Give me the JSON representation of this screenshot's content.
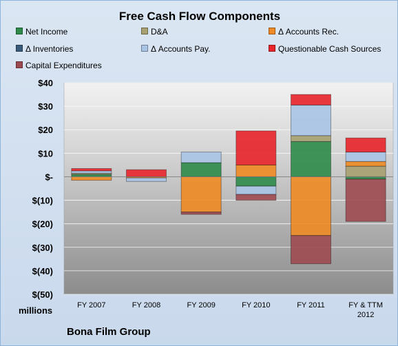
{
  "chart_data": {
    "type": "bar",
    "stacked": true,
    "title": "Free Cash Flow Components",
    "ylabel": "millions",
    "ylim": [
      -50,
      40
    ],
    "yticks": [
      40,
      30,
      20,
      10,
      0,
      -10,
      -20,
      -30,
      -40,
      -50
    ],
    "ytick_labels": [
      "$40",
      "$30",
      "$20",
      "$10",
      "$-",
      "$(10)",
      "$(20)",
      "$(30)",
      "$(40)",
      "$(50)"
    ],
    "categories": [
      "FY 2007",
      "FY 2008",
      "FY 2009",
      "FY 2010",
      "FY 2011",
      "FY & TTM 2012"
    ],
    "grid": true,
    "legend_position": "top",
    "series": [
      {
        "name": "Net Income",
        "color": "#2e8b4a",
        "values": [
          1.0,
          0.0,
          6.0,
          -4.0,
          15.0,
          -1.0
        ]
      },
      {
        "name": "D&A",
        "color": "#a8a070",
        "values": [
          0.5,
          0.0,
          0.0,
          0.0,
          2.5,
          4.5
        ]
      },
      {
        "name": "Δ Accounts Rec.",
        "color": "#f08a24",
        "values": [
          -1.5,
          -0.5,
          -15.0,
          5.0,
          -25.0,
          2.0
        ]
      },
      {
        "name": "Δ Inventories",
        "color": "#3a5a7a",
        "values": [
          0.0,
          0.0,
          0.0,
          0.0,
          0.0,
          0.0
        ]
      },
      {
        "name": "Δ Accounts Pay.",
        "color": "#a9c4e4",
        "values": [
          1.0,
          -1.5,
          4.5,
          -3.5,
          13.0,
          4.0
        ]
      },
      {
        "name": "Questionable Cash Sources",
        "color": "#e8252a",
        "values": [
          1.0,
          3.0,
          0.0,
          14.5,
          4.5,
          6.0
        ]
      },
      {
        "name": "Capital Expenditures",
        "color": "#9c4a50",
        "values": [
          0.0,
          0.0,
          -1.0,
          -2.5,
          -12.0,
          -18.0
        ]
      }
    ]
  },
  "footer": {
    "company": "Bona Film Group"
  }
}
